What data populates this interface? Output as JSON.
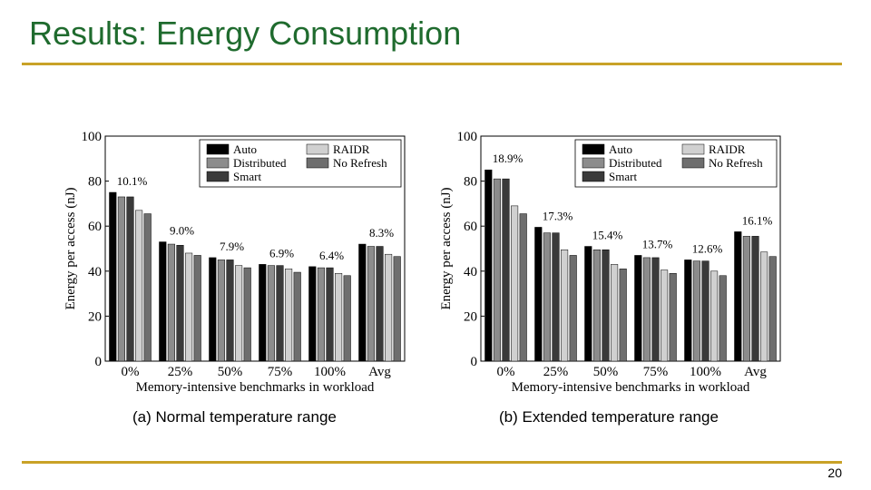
{
  "slide": {
    "title": "Results: Energy Consumption",
    "page_number": "20",
    "rule_color": "#c9a227"
  },
  "chart_data": [
    {
      "type": "bar",
      "caption": "(a) Normal temperature range",
      "categories": [
        "0%",
        "25%",
        "50%",
        "75%",
        "100%",
        "Avg"
      ],
      "xlabel": "Memory-intensive benchmarks in workload",
      "ylabel": "Energy per access (nJ)",
      "ylim": [
        0,
        100
      ],
      "yticks": [
        0,
        20,
        40,
        60,
        80,
        100
      ],
      "grid": false,
      "legend_position": "top-right",
      "series": [
        {
          "name": "Auto",
          "color": "#000000",
          "values": [
            75,
            53,
            46,
            43,
            42,
            52
          ]
        },
        {
          "name": "Distributed",
          "color": "#8c8c8c",
          "values": [
            73,
            52,
            45,
            42.5,
            41.5,
            51
          ]
        },
        {
          "name": "Smart",
          "color": "#3a3a3a",
          "values": [
            73,
            51.5,
            45,
            42.5,
            41.5,
            51
          ]
        },
        {
          "name": "RAIDR",
          "color": "#d0d0d0",
          "values": [
            67,
            48,
            42.5,
            41,
            39,
            47.5
          ]
        },
        {
          "name": "No Refresh",
          "color": "#6e6e6e",
          "values": [
            65.5,
            47,
            41.5,
            39.5,
            38,
            46.5
          ]
        }
      ],
      "annotations": [
        "10.1%",
        "9.0%",
        "7.9%",
        "6.9%",
        "6.4%",
        "8.3%"
      ]
    },
    {
      "type": "bar",
      "caption": "(b) Extended temperature range",
      "categories": [
        "0%",
        "25%",
        "50%",
        "75%",
        "100%",
        "Avg"
      ],
      "xlabel": "Memory-intensive benchmarks in workload",
      "ylabel": "Energy per access (nJ)",
      "ylim": [
        0,
        100
      ],
      "yticks": [
        0,
        20,
        40,
        60,
        80,
        100
      ],
      "grid": false,
      "legend_position": "top-right",
      "series": [
        {
          "name": "Auto",
          "color": "#000000",
          "values": [
            85,
            59.5,
            51,
            47,
            45,
            57.5
          ]
        },
        {
          "name": "Distributed",
          "color": "#8c8c8c",
          "values": [
            81,
            57,
            49.5,
            46,
            44.5,
            55.5
          ]
        },
        {
          "name": "Smart",
          "color": "#3a3a3a",
          "values": [
            81,
            57,
            49.5,
            46,
            44.5,
            55.5
          ]
        },
        {
          "name": "RAIDR",
          "color": "#d0d0d0",
          "values": [
            69,
            49.5,
            43,
            40.5,
            40,
            48.5
          ]
        },
        {
          "name": "No Refresh",
          "color": "#6e6e6e",
          "values": [
            65.5,
            47,
            41,
            39,
            38,
            46.5
          ]
        }
      ],
      "annotations": [
        "18.9%",
        "17.3%",
        "15.4%",
        "13.7%",
        "12.6%",
        "16.1%"
      ]
    }
  ]
}
